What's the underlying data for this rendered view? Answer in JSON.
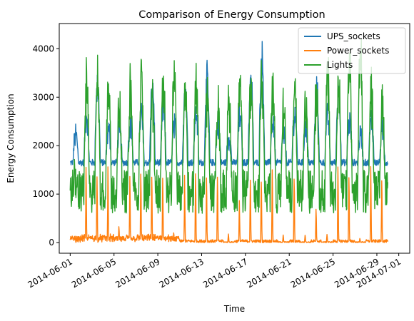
{
  "chart_data": {
    "type": "line",
    "title": "Comparison of Energy Consumption",
    "xlabel": "Time",
    "ylabel": "Energy Consumption",
    "xlim": [
      "2014-05-31",
      "2014-07-02"
    ],
    "ylim": [
      -220,
      4520
    ],
    "y_ticks": [
      0,
      1000,
      2000,
      3000,
      4000
    ],
    "x_ticks": [
      "2014-06-01",
      "2014-06-05",
      "2014-06-09",
      "2014-06-13",
      "2014-06-17",
      "2014-06-21",
      "2014-06-25",
      "2014-06-29",
      "2014-07-01"
    ],
    "x_tick_rotation": 30,
    "grid": false,
    "legend_position": "top-right",
    "series": [
      {
        "name": "UPS_sockets",
        "color": "#1f77b4",
        "x_range": [
          "2014-06-01",
          "2014-06-30"
        ],
        "baseline": 1650,
        "daily_peak": [
          2300,
          2700,
          3450,
          2400,
          2350,
          2600,
          2800,
          3350,
          2900,
          2500,
          3300,
          2800,
          3550,
          2500,
          2250,
          2700,
          3650,
          4150,
          2600,
          2300,
          2800,
          2450,
          3300,
          2700,
          3300,
          2600,
          2300,
          2600,
          2350,
          2250
        ],
        "min": 1450,
        "max": 4150
      },
      {
        "name": "Power_sockets",
        "color": "#ff7f0e",
        "x_range": [
          "2014-06-01",
          "2014-06-30"
        ],
        "baseline": 0,
        "daily_peak": [
          150,
          1820,
          1820,
          1800,
          400,
          1600,
          1750,
          1800,
          1750,
          250,
          1600,
          1700,
          1700,
          1750,
          200,
          1050,
          1650,
          1700,
          1700,
          200,
          1650,
          200,
          800,
          200,
          1750,
          1700,
          100,
          1750,
          1700,
          50
        ],
        "min": 0,
        "max": 1820
      },
      {
        "name": "Lights",
        "color": "#2ca02c",
        "x_range": [
          "2014-06-01",
          "2014-06-30"
        ],
        "baseline": 1000,
        "daily_peak": [
          1400,
          3550,
          3700,
          3550,
          3200,
          3400,
          3600,
          3200,
          3700,
          3950,
          3350,
          3500,
          3300,
          3200,
          3050,
          3500,
          3600,
          3700,
          3400,
          3050,
          3500,
          3100,
          3300,
          3850,
          3700,
          4050,
          4300,
          3350,
          3100,
          2750
        ],
        "min": 600,
        "max": 4300
      }
    ]
  }
}
